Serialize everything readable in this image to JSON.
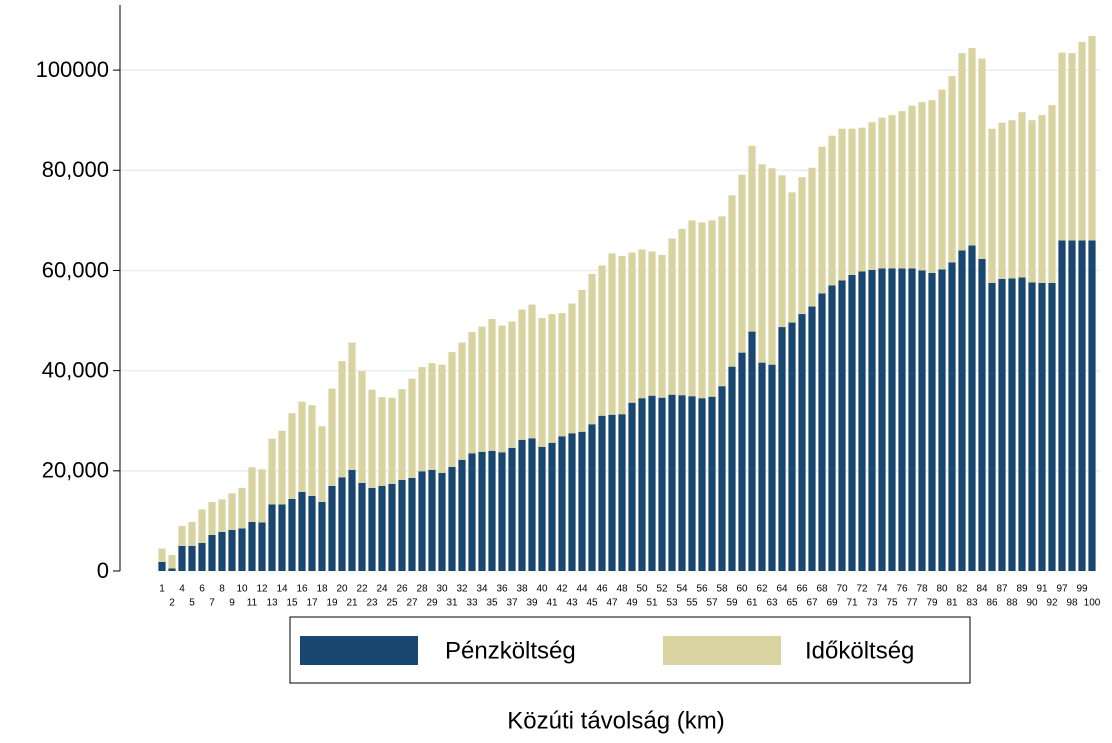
{
  "chart_data": {
    "type": "bar",
    "stacked": true,
    "x_label": "Közúti távolság (km)",
    "categories": [
      "1",
      "2",
      "4",
      "5",
      "6",
      "7",
      "8",
      "9",
      "10",
      "11",
      "12",
      "13",
      "14",
      "15",
      "16",
      "17",
      "18",
      "19",
      "20",
      "21",
      "22",
      "23",
      "24",
      "25",
      "26",
      "27",
      "28",
      "29",
      "30",
      "31",
      "32",
      "33",
      "34",
      "35",
      "36",
      "37",
      "38",
      "39",
      "40",
      "41",
      "42",
      "43",
      "44",
      "45",
      "46",
      "47",
      "48",
      "49",
      "50",
      "51",
      "52",
      "53",
      "54",
      "55",
      "56",
      "57",
      "58",
      "59",
      "60",
      "61",
      "62",
      "63",
      "64",
      "65",
      "66",
      "67",
      "68",
      "69",
      "70",
      "71",
      "72",
      "73",
      "74",
      "75",
      "76",
      "77",
      "78",
      "79",
      "80",
      "81",
      "82",
      "83",
      "84",
      "86",
      "87",
      "88",
      "89",
      "90",
      "91",
      "92",
      "97",
      "98",
      "99",
      "100"
    ],
    "series": [
      {
        "name": "Pénzköltség",
        "color": "#1a476f",
        "values": [
          1800,
          500,
          5000,
          5000,
          5600,
          7200,
          7800,
          8200,
          8500,
          9800,
          9700,
          13300,
          13300,
          14400,
          15800,
          15000,
          13800,
          17000,
          18700,
          20200,
          17600,
          16600,
          17000,
          17400,
          18200,
          18600,
          19900,
          20200,
          19600,
          20800,
          22200,
          23500,
          23800,
          24000,
          23700,
          24600,
          26200,
          26500,
          24800,
          25600,
          26900,
          27500,
          27800,
          29300,
          31000,
          31200,
          31300,
          33600,
          34500,
          35000,
          34600,
          35200,
          35100,
          34900,
          34500,
          34800,
          36900,
          40800,
          43600,
          47800,
          41600,
          41200,
          48700,
          49600,
          51300,
          52800,
          55400,
          57000,
          58000,
          59100,
          59800,
          60100,
          60400,
          60400,
          60400,
          60400,
          60000,
          59500,
          60200,
          61600,
          64000,
          65000,
          62300,
          57500,
          58300,
          58400,
          58600,
          57600,
          57500,
          57500,
          66000,
          66000,
          66000,
          66000
        ]
      },
      {
        "name": "Időköltség",
        "color": "#d8d3a0",
        "values": [
          2700,
          2700,
          4000,
          4800,
          6700,
          6600,
          6500,
          7300,
          8100,
          10900,
          10600,
          13100,
          14700,
          17100,
          18000,
          18100,
          15100,
          19400,
          23200,
          25400,
          22300,
          19600,
          17700,
          17200,
          18100,
          19800,
          20800,
          21300,
          21600,
          22900,
          23400,
          24200,
          25000,
          26300,
          25300,
          25200,
          26000,
          26700,
          25700,
          25700,
          24600,
          25900,
          28300,
          30000,
          30000,
          32200,
          31600,
          30000,
          29700,
          28800,
          28500,
          31200,
          33200,
          35100,
          35100,
          35200,
          33900,
          34200,
          35500,
          37100,
          39600,
          39200,
          30300,
          26000,
          27300,
          27700,
          29300,
          29900,
          30300,
          29200,
          28700,
          29500,
          30100,
          30600,
          31400,
          32500,
          33600,
          34500,
          35900,
          37200,
          39400,
          39400,
          40000,
          30800,
          31200,
          31600,
          33000,
          32400,
          33500,
          35500,
          37500,
          37400,
          39600,
          40800
        ]
      }
    ],
    "ylim": [
      0,
      113000
    ],
    "yticks": [
      0,
      {
        "value": 20000,
        "label": "20,000"
      },
      {
        "value": 40000,
        "label": "40,000"
      },
      {
        "value": 60000,
        "label": "60,000"
      },
      {
        "value": 80000,
        "label": "80,000"
      },
      100000
    ],
    "grid": true,
    "legend": "bottom"
  }
}
